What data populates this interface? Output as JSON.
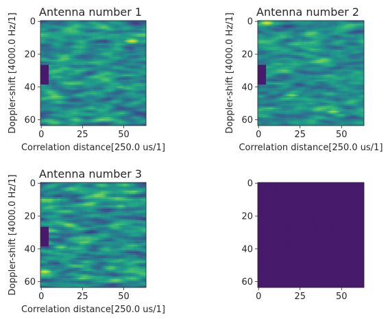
{
  "colormap": "viridis",
  "chart_data": [
    {
      "type": "heatmap",
      "title": "Antenna number 1",
      "xlabel": "Correlation distance[250.0 us/1]",
      "ylabel": "Doppler-shift [4000.0 Hz/1]",
      "xlim": [
        0,
        63
      ],
      "ylim": [
        63,
        0
      ],
      "xticks": [
        "0",
        "25",
        "50"
      ],
      "yticks": [
        "0",
        "20",
        "40",
        "60"
      ],
      "grid_size": [
        64,
        64
      ],
      "masked_region": {
        "x": [
          0,
          5
        ],
        "y": [
          27,
          39
        ]
      },
      "pattern": "horizontally stretched noise, mostly teal-green with yellow streaks; bright yellow patch near x 55, y 12",
      "seed": 11,
      "hotspots": [
        {
          "x": 55,
          "y": 12,
          "v": 0.95
        },
        {
          "x": 48,
          "y": 40,
          "v": 0.7
        },
        {
          "x": 40,
          "y": 60,
          "v": 0.75
        }
      ]
    },
    {
      "type": "heatmap",
      "title": "Antenna number 2",
      "xlabel": "Correlation distance[250.0 us/1]",
      "ylabel": "Doppler-shift [4000.0 Hz/1]",
      "xlim": [
        0,
        63
      ],
      "ylim": [
        63,
        0
      ],
      "xticks": [
        "0",
        "25",
        "50"
      ],
      "yticks": [
        "0",
        "20",
        "40",
        "60"
      ],
      "grid_size": [
        64,
        64
      ],
      "masked_region": {
        "x": [
          0,
          5
        ],
        "y": [
          27,
          39
        ]
      },
      "pattern": "horizontally stretched noise with yellow-green streaks; bright yellow near x 5, y 1 and x 45, y 55",
      "seed": 23,
      "hotspots": [
        {
          "x": 5,
          "y": 1,
          "v": 0.95
        },
        {
          "x": 20,
          "y": 45,
          "v": 0.8
        },
        {
          "x": 45,
          "y": 55,
          "v": 0.85
        }
      ]
    },
    {
      "type": "heatmap",
      "title": "Antenna number 3",
      "xlabel": "Correlation distance[250.0 us/1]",
      "ylabel": "Doppler-shift [4000.0 Hz/1]",
      "xlim": [
        0,
        63
      ],
      "ylim": [
        63,
        0
      ],
      "xticks": [
        "0",
        "25",
        "50"
      ],
      "yticks": [
        "0",
        "20",
        "40",
        "60"
      ],
      "grid_size": [
        64,
        64
      ],
      "masked_region": {
        "x": [
          0,
          5
        ],
        "y": [
          27,
          39
        ]
      },
      "pattern": "horizontally stretched noise with yellow streaks; bright yellow near x 2, y 54",
      "seed": 37,
      "hotspots": [
        {
          "x": 2,
          "y": 54,
          "v": 0.95
        },
        {
          "x": 12,
          "y": 39,
          "v": 0.8
        },
        {
          "x": 48,
          "y": 14,
          "v": 0.75
        }
      ]
    },
    {
      "type": "heatmap",
      "title": "",
      "xlabel": "",
      "ylabel": "",
      "xlim": [
        0,
        63
      ],
      "ylim": [
        63,
        0
      ],
      "xticks": [
        "0",
        "25",
        "50"
      ],
      "yticks": [
        "0",
        "20",
        "40",
        "60"
      ],
      "grid_size": [
        64,
        64
      ],
      "uniform_value": 0.07,
      "pattern": "uniform dark purple (constant field)"
    }
  ]
}
